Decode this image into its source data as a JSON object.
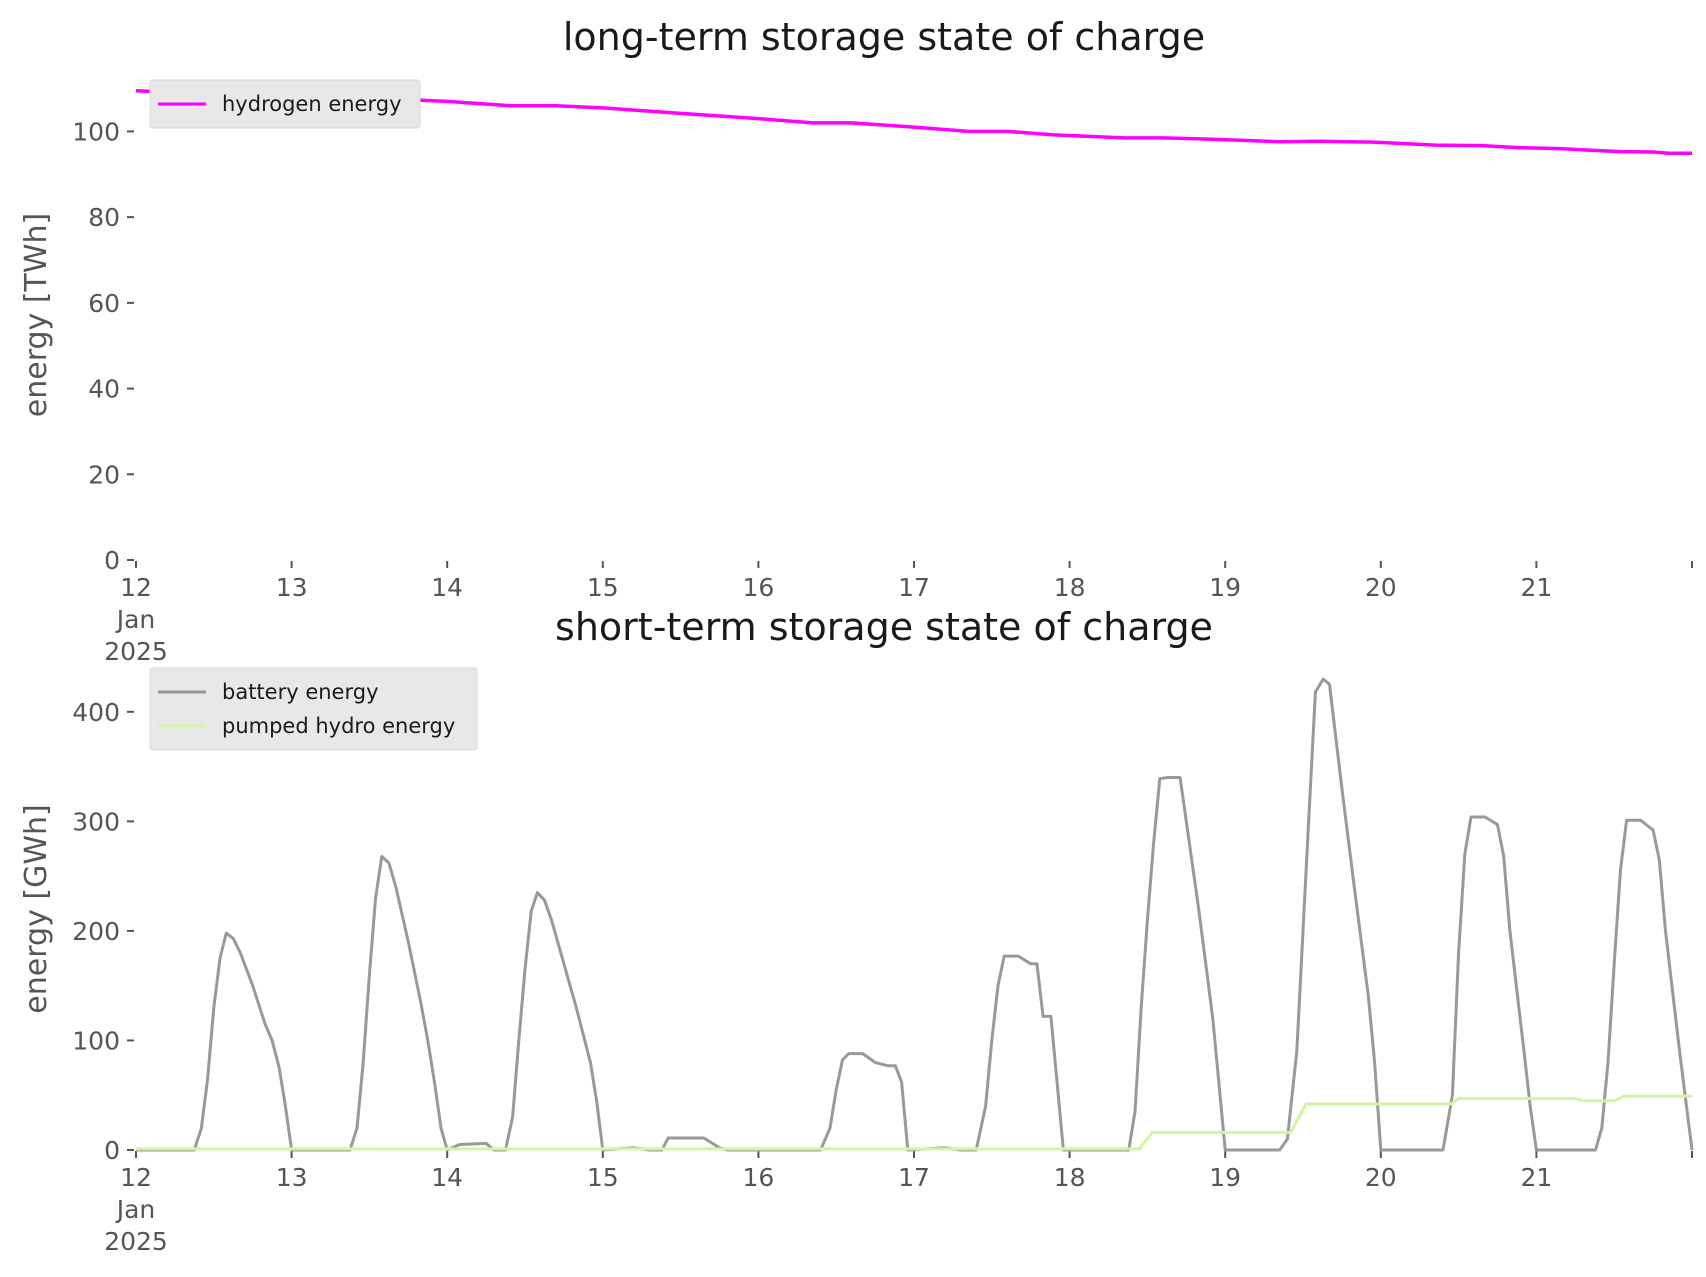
{
  "chart_data": [
    {
      "type": "line",
      "title": "long-term storage state of charge",
      "ylabel": "energy [TWh]",
      "xlabel": "",
      "x_range": [
        "2025-01-12",
        "2025-01-22"
      ],
      "ylim": [
        0,
        112
      ],
      "yticks": [
        0,
        20,
        40,
        60,
        80,
        100
      ],
      "xticks": [
        {
          "label": "12\nJan\n2025",
          "value": 12
        },
        {
          "label": "13",
          "value": 13
        },
        {
          "label": "14",
          "value": 14
        },
        {
          "label": "15",
          "value": 15
        },
        {
          "label": "16",
          "value": 16
        },
        {
          "label": "17",
          "value": 17
        },
        {
          "label": "18",
          "value": 18
        },
        {
          "label": "19",
          "value": 19
        },
        {
          "label": "20",
          "value": 20
        },
        {
          "label": "21",
          "value": 21
        }
      ],
      "grid": false,
      "legend": "upper-left",
      "series": [
        {
          "name": "hydrogen energy",
          "color": "#ff00ff",
          "points": [
            [
              12.0,
              109.5
            ],
            [
              12.5,
              108.8
            ],
            [
              13.0,
              108.5
            ],
            [
              13.5,
              107.8
            ],
            [
              14.0,
              107.0
            ],
            [
              14.4,
              106.0
            ],
            [
              14.7,
              106.0
            ],
            [
              15.0,
              105.5
            ],
            [
              15.5,
              104.2
            ],
            [
              16.0,
              103.0
            ],
            [
              16.35,
              102.0
            ],
            [
              16.6,
              102.0
            ],
            [
              17.0,
              101.0
            ],
            [
              17.35,
              100.0
            ],
            [
              17.6,
              100.0
            ],
            [
              17.9,
              99.2
            ],
            [
              18.35,
              98.5
            ],
            [
              18.6,
              98.5
            ],
            [
              18.9,
              98.2
            ],
            [
              19.35,
              97.6
            ],
            [
              19.6,
              97.7
            ],
            [
              19.95,
              97.5
            ],
            [
              20.35,
              96.8
            ],
            [
              20.65,
              96.7
            ],
            [
              20.9,
              96.2
            ],
            [
              21.15,
              96.0
            ],
            [
              21.35,
              95.6
            ],
            [
              21.55,
              95.3
            ],
            [
              21.75,
              95.2
            ],
            [
              21.85,
              94.9
            ],
            [
              22.0,
              94.9
            ]
          ]
        }
      ]
    },
    {
      "type": "line",
      "title": "short-term storage state of charge",
      "ylabel": "energy [GWh]",
      "xlabel": "",
      "x_range": [
        "2025-01-12",
        "2025-01-22"
      ],
      "ylim": [
        0,
        440
      ],
      "yticks": [
        0,
        100,
        200,
        300,
        400
      ],
      "xticks": [
        {
          "label": "12\nJan\n2025",
          "value": 12
        },
        {
          "label": "13",
          "value": 13
        },
        {
          "label": "14",
          "value": 14
        },
        {
          "label": "15",
          "value": 15
        },
        {
          "label": "16",
          "value": 16
        },
        {
          "label": "17",
          "value": 17
        },
        {
          "label": "18",
          "value": 18
        },
        {
          "label": "19",
          "value": 19
        },
        {
          "label": "20",
          "value": 20
        },
        {
          "label": "21",
          "value": 21
        }
      ],
      "grid": false,
      "legend": "upper-left",
      "series": [
        {
          "name": "battery energy",
          "color": "#999999",
          "points": [
            [
              12.0,
              0
            ],
            [
              12.375,
              0
            ],
            [
              12.42,
              20
            ],
            [
              12.46,
              65
            ],
            [
              12.5,
              130
            ],
            [
              12.54,
              175
            ],
            [
              12.58,
              198
            ],
            [
              12.625,
              193
            ],
            [
              12.67,
              180
            ],
            [
              12.75,
              150
            ],
            [
              12.83,
              115
            ],
            [
              12.875,
              100
            ],
            [
              12.92,
              75
            ],
            [
              12.96,
              40
            ],
            [
              13.0,
              0
            ],
            [
              13.375,
              0
            ],
            [
              13.42,
              20
            ],
            [
              13.46,
              80
            ],
            [
              13.5,
              160
            ],
            [
              13.54,
              230
            ],
            [
              13.58,
              268
            ],
            [
              13.625,
              262
            ],
            [
              13.67,
              240
            ],
            [
              13.75,
              190
            ],
            [
              13.83,
              135
            ],
            [
              13.875,
              100
            ],
            [
              13.92,
              60
            ],
            [
              13.96,
              20
            ],
            [
              14.0,
              0
            ],
            [
              14.08,
              5
            ],
            [
              14.25,
              6
            ],
            [
              14.3,
              0
            ],
            [
              14.375,
              0
            ],
            [
              14.42,
              30
            ],
            [
              14.46,
              100
            ],
            [
              14.5,
              165
            ],
            [
              14.54,
              218
            ],
            [
              14.58,
              235
            ],
            [
              14.625,
              228
            ],
            [
              14.67,
              210
            ],
            [
              14.75,
              170
            ],
            [
              14.83,
              130
            ],
            [
              14.92,
              80
            ],
            [
              14.96,
              45
            ],
            [
              15.0,
              0
            ],
            [
              15.2,
              2
            ],
            [
              15.3,
              0
            ],
            [
              15.38,
              0
            ],
            [
              15.42,
              11
            ],
            [
              15.65,
              11
            ],
            [
              15.75,
              2
            ],
            [
              15.8,
              0
            ],
            [
              16.4,
              0
            ],
            [
              16.46,
              20
            ],
            [
              16.5,
              55
            ],
            [
              16.54,
              82
            ],
            [
              16.58,
              88
            ],
            [
              16.67,
              88
            ],
            [
              16.75,
              80
            ],
            [
              16.83,
              77
            ],
            [
              16.88,
              77
            ],
            [
              16.92,
              62
            ],
            [
              16.96,
              0
            ],
            [
              17.2,
              2
            ],
            [
              17.3,
              0
            ],
            [
              17.4,
              0
            ],
            [
              17.46,
              40
            ],
            [
              17.5,
              100
            ],
            [
              17.54,
              150
            ],
            [
              17.58,
              177
            ],
            [
              17.67,
              177
            ],
            [
              17.75,
              170
            ],
            [
              17.79,
              170
            ],
            [
              17.83,
              122
            ],
            [
              17.88,
              122
            ],
            [
              17.96,
              0
            ],
            [
              18.38,
              0
            ],
            [
              18.42,
              35
            ],
            [
              18.46,
              130
            ],
            [
              18.5,
              210
            ],
            [
              18.54,
              280
            ],
            [
              18.58,
              339
            ],
            [
              18.63,
              340
            ],
            [
              18.71,
              340
            ],
            [
              18.75,
              300
            ],
            [
              18.83,
              220
            ],
            [
              18.92,
              120
            ],
            [
              18.96,
              60
            ],
            [
              19.0,
              0
            ],
            [
              19.35,
              0
            ],
            [
              19.4,
              10
            ],
            [
              19.46,
              90
            ],
            [
              19.5,
              200
            ],
            [
              19.54,
              310
            ],
            [
              19.58,
              418
            ],
            [
              19.63,
              430
            ],
            [
              19.67,
              425
            ],
            [
              19.75,
              330
            ],
            [
              19.83,
              240
            ],
            [
              19.92,
              140
            ],
            [
              19.96,
              80
            ],
            [
              20.0,
              0
            ],
            [
              20.4,
              0
            ],
            [
              20.46,
              50
            ],
            [
              20.5,
              180
            ],
            [
              20.54,
              270
            ],
            [
              20.58,
              304
            ],
            [
              20.67,
              304
            ],
            [
              20.75,
              297
            ],
            [
              20.79,
              268
            ],
            [
              20.83,
              200
            ],
            [
              20.92,
              90
            ],
            [
              20.96,
              40
            ],
            [
              21.0,
              0
            ],
            [
              21.38,
              0
            ],
            [
              21.42,
              20
            ],
            [
              21.46,
              80
            ],
            [
              21.5,
              170
            ],
            [
              21.54,
              255
            ],
            [
              21.58,
              301
            ],
            [
              21.67,
              301
            ],
            [
              21.75,
              292
            ],
            [
              21.79,
              265
            ],
            [
              21.83,
              200
            ],
            [
              21.92,
              90
            ],
            [
              22.0,
              0
            ]
          ]
        },
        {
          "name": "pumped hydro energy",
          "color": "#d4f5a0",
          "points": [
            [
              12.0,
              1
            ],
            [
              18.45,
              1
            ],
            [
              18.53,
              16
            ],
            [
              19.42,
              16
            ],
            [
              19.52,
              42
            ],
            [
              20.45,
              42
            ],
            [
              20.5,
              47
            ],
            [
              21.25,
              47
            ],
            [
              21.3,
              45
            ],
            [
              21.5,
              45
            ],
            [
              21.56,
              49
            ],
            [
              22.0,
              49
            ]
          ]
        }
      ]
    }
  ]
}
